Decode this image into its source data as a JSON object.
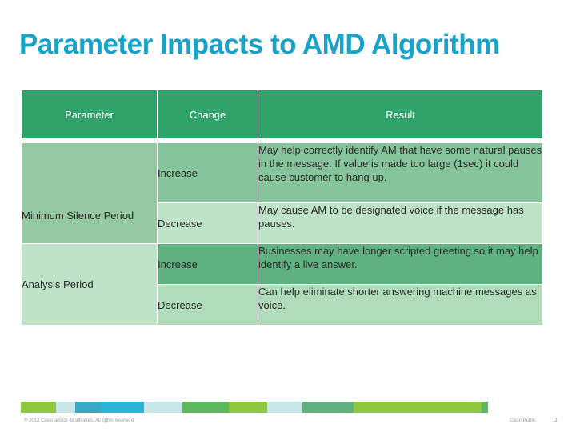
{
  "title": "Parameter Impacts to AMD Algorithm",
  "table": {
    "headers": {
      "parameter": "Parameter",
      "change": "Change",
      "result": "Result"
    },
    "groups": [
      {
        "parameter": "Minimum Silence Period",
        "rows": [
          {
            "change": "Increase",
            "result": "May help correctly identify AM that have some natural pauses in the message.  If value is made too large (1sec) it could cause customer to hang up."
          },
          {
            "change": "Decrease",
            "result": "May cause AM to be designated voice if the message has pauses."
          }
        ]
      },
      {
        "parameter": "Analysis Period",
        "rows": [
          {
            "change": "Increase",
            "result": "Businesses may have longer scripted greeting so it may help identify a live answer."
          },
          {
            "change": "Decrease",
            "result": "Can help eliminate shorter answering machine messages as voice."
          }
        ]
      }
    ]
  },
  "footer": {
    "copyright": "© 2012 Cisco and/or its affiliates. All rights reserved.",
    "classification": "Cisco Public",
    "page": "11",
    "bar_colors": [
      "#8dc63f",
      "#c8e6e8",
      "#3aa9c5",
      "#29b6d6",
      "#c8e6e8",
      "#5cb85c",
      "#8dc63f",
      "#c8e6e8",
      "#5fb17f",
      "#8dc63f",
      "#5cb85c"
    ]
  }
}
